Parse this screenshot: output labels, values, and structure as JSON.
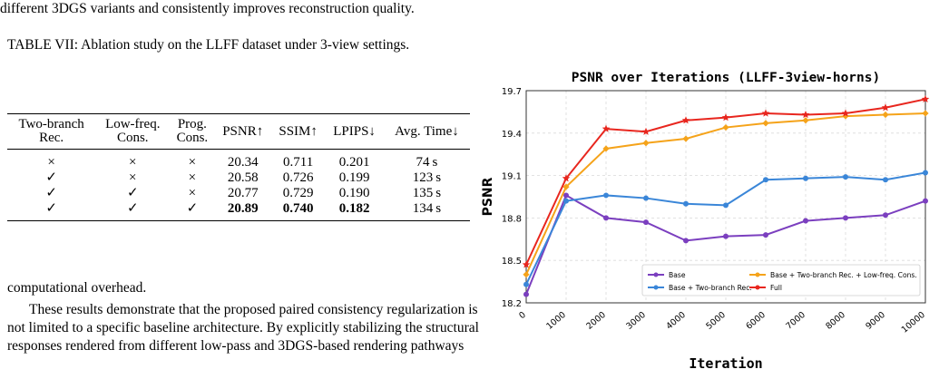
{
  "top_text": "different 3DGS variants and consistently improves reconstruction quality.",
  "table": {
    "caption": "TABLE VII: Ablation study on the LLFF dataset under 3-view settings.",
    "headers": [
      [
        "Two-branch",
        "Rec."
      ],
      [
        "Low-freq.",
        "Cons."
      ],
      [
        "Prog.",
        "Cons."
      ],
      [
        "PSNR↑"
      ],
      [
        "SSIM↑"
      ],
      [
        "LPIPS↓"
      ],
      [
        "Avg. Time↓"
      ]
    ],
    "rows": [
      [
        "×",
        "×",
        "×",
        "20.34",
        "0.711",
        "0.201",
        "74 s"
      ],
      [
        "✓",
        "×",
        "×",
        "20.58",
        "0.726",
        "0.199",
        "123 s"
      ],
      [
        "✓",
        "✓",
        "×",
        "20.77",
        "0.729",
        "0.190",
        "135 s"
      ],
      [
        "✓",
        "✓",
        "✓",
        "20.89",
        "0.740",
        "0.182",
        "134 s"
      ]
    ],
    "bold_row": 3,
    "bold_cols": [
      3,
      4,
      5
    ]
  },
  "body": {
    "line1": "computational overhead.",
    "para": "These results demonstrate that the proposed paired consistency regularization is not limited to a specific baseline architecture. By explicitly stabilizing the structural responses rendered from different low-pass and 3DGS-based rendering pathways"
  },
  "chart_data": {
    "type": "line",
    "title": "PSNR over Iterations (LLFF-3view-horns)",
    "xlabel": "Iteration",
    "ylabel": "PSNR",
    "x": [
      0,
      1000,
      2000,
      3000,
      4000,
      5000,
      6000,
      7000,
      8000,
      9000,
      10000
    ],
    "xticks": [
      "0",
      "1000",
      "2000",
      "3000",
      "4000",
      "5000",
      "6000",
      "7000",
      "8000",
      "9000",
      "10000"
    ],
    "yticks": [
      18.2,
      18.5,
      18.8,
      19.1,
      19.4,
      19.7
    ],
    "ylim": [
      18.2,
      19.7
    ],
    "grid": true,
    "legend_position": "lower-right",
    "series": [
      {
        "name": "Base",
        "color": "#7b3fbf",
        "values": [
          18.26,
          18.96,
          18.8,
          18.77,
          18.64,
          18.67,
          18.68,
          18.78,
          18.8,
          18.82,
          18.92
        ]
      },
      {
        "name": "Base + Two-branch Rec.",
        "color": "#3a86d8",
        "values": [
          18.33,
          18.92,
          18.96,
          18.94,
          18.9,
          18.89,
          19.07,
          19.08,
          19.09,
          19.07,
          19.12
        ]
      },
      {
        "name": "Base + Two-branch Rec. + Low-freq. Cons.",
        "color": "#f5a31a",
        "values": [
          18.4,
          19.02,
          19.29,
          19.33,
          19.36,
          19.44,
          19.47,
          19.49,
          19.52,
          19.53,
          19.54
        ]
      },
      {
        "name": "Full",
        "color": "#e8261e",
        "values": [
          18.47,
          19.08,
          19.43,
          19.41,
          19.49,
          19.51,
          19.54,
          19.53,
          19.54,
          19.58,
          19.64
        ]
      }
    ]
  }
}
